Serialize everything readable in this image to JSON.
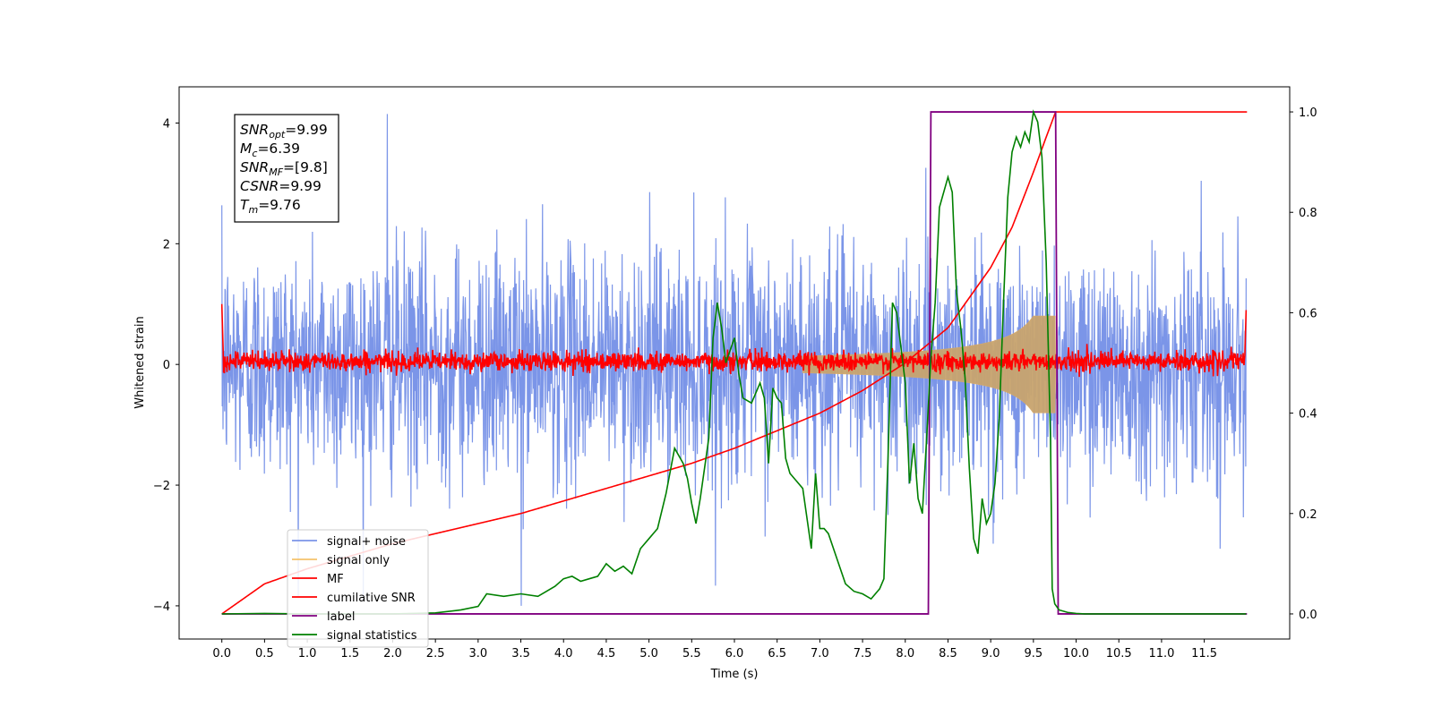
{
  "chart_data": {
    "type": "line",
    "xlabel": "Time (s)",
    "ylabel": "Whitened strain",
    "xlim": [
      -0.5,
      12.5
    ],
    "ylim": [
      -4.55,
      4.6
    ],
    "y2lim": [
      -0.05,
      1.05
    ],
    "x_ticks": [
      "0.0",
      "0.5",
      "1.0",
      "1.5",
      "2.0",
      "2.5",
      "3.0",
      "3.5",
      "4.0",
      "4.5",
      "5.0",
      "5.5",
      "6.0",
      "6.5",
      "7.0",
      "7.5",
      "8.0",
      "8.5",
      "9.0",
      "9.5",
      "10.0",
      "10.5",
      "11.0",
      "11.5"
    ],
    "y_ticks": [
      "−4",
      "−2",
      "0",
      "2",
      "4"
    ],
    "y2_ticks": [
      "0.0",
      "0.2",
      "0.4",
      "0.6",
      "0.8",
      "1.0"
    ],
    "legend_position": "lower-left",
    "series": [
      {
        "name": "signal+ noise",
        "color": "#7b95e8",
        "axis": "left",
        "kind": "gaussian-noise",
        "sigma": 0.95,
        "peak_values": {
          "max": 4.15,
          "min": -4.0
        }
      },
      {
        "name": "signal only",
        "color": "#f5c26b",
        "axis": "left",
        "kind": "chirp",
        "merger_time": 9.76,
        "amplitude_at_merger": 0.8
      },
      {
        "name": "MF",
        "color": "#ff0000",
        "axis": "left",
        "kind": "matched-filter-noise",
        "sigma": 0.08
      },
      {
        "name": "cumilative SNR",
        "color": "#ff0000",
        "axis": "right",
        "x": [
          0.0,
          0.5,
          1.0,
          1.5,
          2.0,
          2.5,
          3.0,
          3.5,
          4.0,
          4.5,
          5.0,
          5.5,
          6.0,
          6.5,
          7.0,
          7.5,
          8.0,
          8.5,
          9.0,
          9.25,
          9.5,
          9.65,
          9.76,
          12.0
        ],
        "values": [
          0.0,
          0.06,
          0.09,
          0.115,
          0.14,
          0.16,
          0.18,
          0.2,
          0.225,
          0.25,
          0.275,
          0.3,
          0.33,
          0.365,
          0.4,
          0.445,
          0.5,
          0.57,
          0.69,
          0.77,
          0.88,
          0.95,
          1.0,
          1.0
        ]
      },
      {
        "name": "label",
        "color": "#800080",
        "axis": "right",
        "x": [
          0.0,
          8.27,
          8.3,
          9.76,
          9.79,
          12.0
        ],
        "values": [
          0.0,
          0.0,
          1.0,
          1.0,
          0.0,
          0.0
        ]
      },
      {
        "name": "signal statistics",
        "color": "#008000",
        "axis": "right",
        "x": [
          0.0,
          0.5,
          1.0,
          1.5,
          2.0,
          2.5,
          2.8,
          3.0,
          3.1,
          3.3,
          3.5,
          3.7,
          3.9,
          4.0,
          4.1,
          4.2,
          4.3,
          4.4,
          4.5,
          4.6,
          4.7,
          4.8,
          4.9,
          5.0,
          5.1,
          5.2,
          5.3,
          5.4,
          5.45,
          5.5,
          5.55,
          5.6,
          5.7,
          5.75,
          5.8,
          5.85,
          5.9,
          6.0,
          6.05,
          6.1,
          6.2,
          6.25,
          6.3,
          6.35,
          6.4,
          6.45,
          6.5,
          6.55,
          6.6,
          6.65,
          6.7,
          6.8,
          6.9,
          6.95,
          7.0,
          7.05,
          7.1,
          7.2,
          7.3,
          7.4,
          7.5,
          7.6,
          7.7,
          7.75,
          7.8,
          7.85,
          7.9,
          8.0,
          8.05,
          8.1,
          8.15,
          8.2,
          8.25,
          8.3,
          8.35,
          8.4,
          8.5,
          8.55,
          8.6,
          8.65,
          8.7,
          8.75,
          8.8,
          8.85,
          8.9,
          8.95,
          9.0,
          9.05,
          9.1,
          9.15,
          9.2,
          9.25,
          9.3,
          9.35,
          9.4,
          9.45,
          9.5,
          9.55,
          9.6,
          9.65,
          9.7,
          9.72,
          9.75,
          9.8,
          9.9,
          10.0,
          10.1,
          10.3,
          11.0,
          11.99
        ],
        "values": [
          0.0,
          0.001,
          0.0,
          0.0,
          0.0,
          0.002,
          0.008,
          0.015,
          0.04,
          0.035,
          0.04,
          0.035,
          0.055,
          0.07,
          0.075,
          0.065,
          0.07,
          0.075,
          0.1,
          0.085,
          0.095,
          0.08,
          0.13,
          0.15,
          0.17,
          0.24,
          0.33,
          0.3,
          0.27,
          0.22,
          0.18,
          0.23,
          0.35,
          0.55,
          0.62,
          0.57,
          0.5,
          0.55,
          0.48,
          0.43,
          0.42,
          0.44,
          0.46,
          0.43,
          0.3,
          0.45,
          0.43,
          0.42,
          0.31,
          0.28,
          0.27,
          0.25,
          0.13,
          0.28,
          0.17,
          0.17,
          0.16,
          0.11,
          0.06,
          0.045,
          0.04,
          0.03,
          0.05,
          0.07,
          0.32,
          0.62,
          0.6,
          0.46,
          0.26,
          0.34,
          0.23,
          0.2,
          0.35,
          0.51,
          0.62,
          0.81,
          0.87,
          0.84,
          0.64,
          0.57,
          0.47,
          0.29,
          0.15,
          0.12,
          0.23,
          0.18,
          0.2,
          0.26,
          0.39,
          0.62,
          0.83,
          0.92,
          0.95,
          0.93,
          0.96,
          0.94,
          1.0,
          0.98,
          0.91,
          0.7,
          0.35,
          0.05,
          0.02,
          0.008,
          0.003,
          0.001,
          0.0,
          0.0,
          0.0,
          0.0
        ]
      }
    ],
    "annotation_box": {
      "lines": [
        {
          "symbol": "SNR",
          "sub": "opt",
          "value": "=9.99"
        },
        {
          "symbol": "M",
          "sub": "c",
          "value": "=6.39"
        },
        {
          "symbol": "SNR",
          "sub": "MF",
          "value": "=[9.8]"
        },
        {
          "symbol": "CSNR",
          "sub": "",
          "value": "=9.99"
        },
        {
          "symbol": "T",
          "sub": "m",
          "value": "=9.76"
        }
      ]
    }
  }
}
